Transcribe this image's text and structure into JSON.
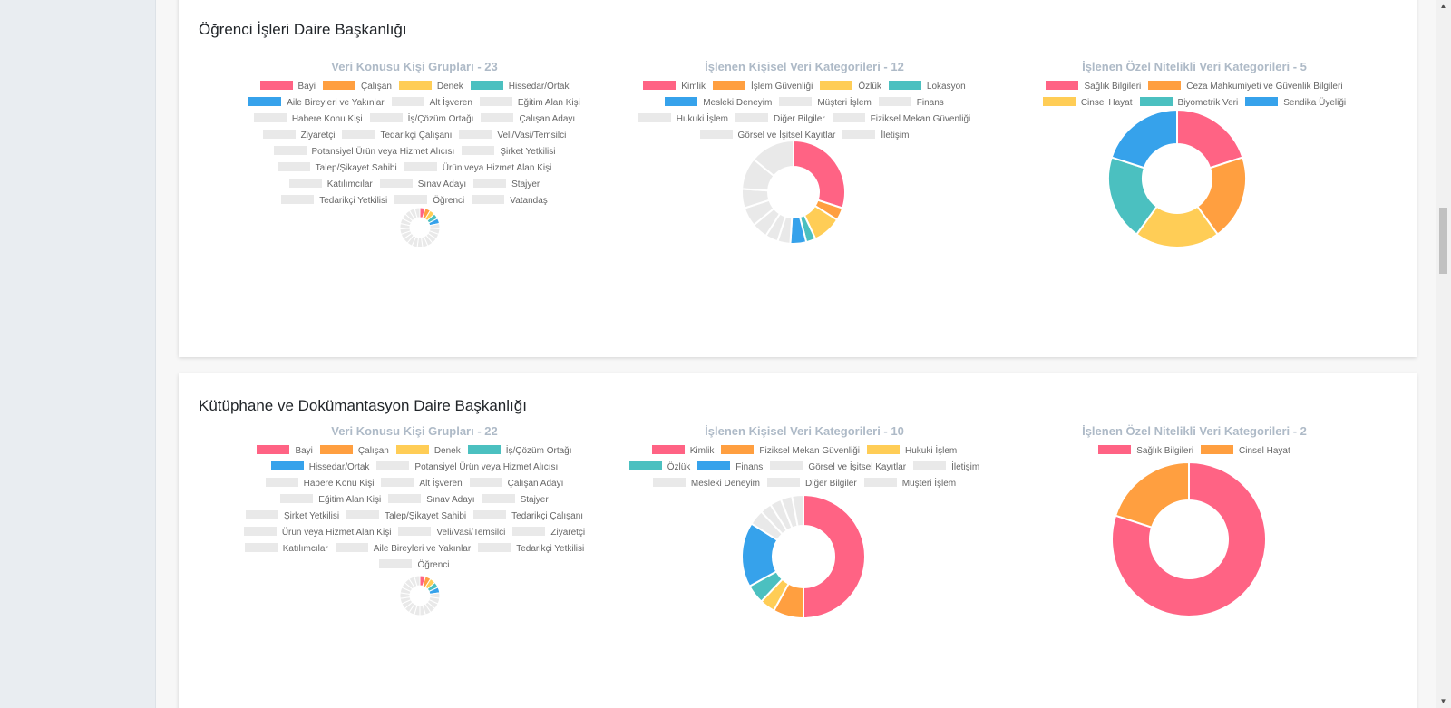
{
  "colors": {
    "red": "#ff6384",
    "orange": "#ff9f40",
    "yellow": "#ffcd56",
    "teal": "#4bc0c0",
    "blue": "#36a2eb",
    "gray": "#e9e9e9",
    "title_gray": "#aebac7"
  },
  "scrollbar": {
    "up_icon": "▲",
    "down_icon": "▼"
  },
  "cards": [
    {
      "title": "Öğrenci İşleri Daire Başkanlığı",
      "charts": [
        {
          "title": "Veri Konusu Kişi Grupları - 23",
          "legend_rows": [
            [
              "Bayi",
              "Çalışan",
              "Denek",
              "Hissedar/Ortak"
            ],
            [
              "Aile Bireyleri ve Yakınlar",
              "Alt İşveren",
              "Eğitim Alan Kişi"
            ],
            [
              "Habere Konu Kişi",
              "İş/Çözüm Ortağı",
              "Çalışan Adayı"
            ],
            [
              "Ziyaretçi",
              "Tedarikçi Çalışanı",
              "Veli/Vasi/Temsilci"
            ],
            [
              "Potansiyel Ürün veya Hizmet Alıcısı",
              "Şirket Yetkilisi"
            ],
            [
              "Talep/Şikayet Sahibi",
              "Ürün veya Hizmet Alan Kişi"
            ],
            [
              "Katılımcılar",
              "Sınav Adayı",
              "Stajyer"
            ],
            [
              "Tedarikçi Yetkilisi",
              "Öğrenci",
              "Vatandaş"
            ]
          ],
          "visible_count": 5
        },
        {
          "title": "İşlenen Kişisel Veri Kategorileri - 12",
          "legend_rows": [
            [
              "Kimlik",
              "İşlem Güvenliği",
              "Özlük",
              "Lokasyon"
            ],
            [
              "Mesleki Deneyim",
              "Müşteri İşlem",
              "Finans"
            ],
            [
              "Hukuki İşlem",
              "Diğer Bilgiler",
              "Fiziksel Mekan Güvenliği"
            ],
            [
              "Görsel ve İşitsel Kayıtlar",
              "İletişim"
            ]
          ],
          "visible_count": 5
        },
        {
          "title": "İşlenen Özel Nitelikli Veri Kategorileri - 5",
          "legend_rows": [
            [
              "Sağlık Bilgileri",
              "Ceza Mahkumiyeti ve Güvenlik Bilgileri"
            ],
            [
              "Cinsel Hayat",
              "Biyometrik Veri",
              "Sendika Üyeliği"
            ]
          ],
          "visible_count": 5
        }
      ]
    },
    {
      "title": "Kütüphane ve Dokümantasyon Daire Başkanlığı",
      "charts": [
        {
          "title": "Veri Konusu Kişi Grupları - 22",
          "legend_rows": [
            [
              "Bayi",
              "Çalışan",
              "Denek",
              "İş/Çözüm Ortağı"
            ],
            [
              "Hissedar/Ortak",
              "Potansiyel Ürün veya Hizmet Alıcısı"
            ],
            [
              "Habere Konu Kişi",
              "Alt İşveren",
              "Çalışan Adayı"
            ],
            [
              "Eğitim Alan Kişi",
              "Sınav Adayı",
              "Stajyer"
            ],
            [
              "Şirket Yetkilisi",
              "Talep/Şikayet Sahibi",
              "Tedarikçi Çalışanı"
            ],
            [
              "Ürün veya Hizmet Alan Kişi",
              "Veli/Vasi/Temsilci",
              "Ziyaretçi"
            ],
            [
              "Katılımcılar",
              "Aile Bireyleri ve Yakınlar",
              "Tedarikçi Yetkilisi"
            ],
            [
              "Öğrenci"
            ]
          ],
          "visible_count": 5
        },
        {
          "title": "İşlenen Kişisel Veri Kategorileri - 10",
          "legend_rows": [
            [
              "Kimlik",
              "Fiziksel Mekan Güvenliği",
              "Hukuki İşlem"
            ],
            [
              "Özlük",
              "Finans",
              "Görsel ve İşitsel Kayıtlar",
              "İletişim"
            ],
            [
              "Mesleki Deneyim",
              "Diğer Bilgiler",
              "Müşteri İşlem"
            ]
          ],
          "visible_count": 5
        },
        {
          "title": "İşlenen Özel Nitelikli Veri Kategorileri - 2",
          "legend_rows": [
            [
              "Sağlık Bilgileri",
              "Cinsel Hayat"
            ]
          ],
          "visible_count": 2
        }
      ]
    }
  ],
  "chart_data": [
    {
      "type": "pie",
      "title": "Veri Konusu Kişi Grupları - 23",
      "categories": [
        "Bayi",
        "Çalışan",
        "Denek",
        "Hissedar/Ortak",
        "Aile Bireyleri ve Yakınlar",
        "Alt İşveren",
        "Eğitim Alan Kişi",
        "Habere Konu Kişi",
        "İş/Çözüm Ortağı",
        "Çalışan Adayı",
        "Ziyaretçi",
        "Tedarikçi Çalışanı",
        "Veli/Vasi/Temsilci",
        "Potansiyel Ürün veya Hizmet Alıcısı",
        "Şirket Yetkilisi",
        "Talep/Şikayet Sahibi",
        "Ürün veya Hizmet Alan Kişi",
        "Katılımcılar",
        "Sınav Adayı",
        "Stajyer",
        "Tedarikçi Yetkilisi",
        "Öğrenci",
        "Vatandaş"
      ],
      "values": [
        1,
        1,
        1,
        1,
        1,
        1,
        1,
        1,
        1,
        1,
        1,
        1,
        1,
        1,
        1,
        1,
        1,
        1,
        1,
        1,
        1,
        1,
        1
      ],
      "donut": true
    },
    {
      "type": "pie",
      "title": "İşlenen Kişisel Veri Kategorileri - 12",
      "categories": [
        "Kimlik",
        "İşlem Güvenliği",
        "Özlük",
        "Lokasyon",
        "Mesleki Deneyim",
        "Müşteri İşlem",
        "Finans",
        "Hukuki İşlem",
        "Diğer Bilgiler",
        "Fiziksel Mekan Güvenliği",
        "Görsel ve İşitsel Kayıtlar",
        "İletişim"
      ],
      "values": [
        30,
        4,
        9,
        3,
        5,
        4,
        4,
        5,
        6,
        6,
        10,
        14
      ],
      "donut": true
    },
    {
      "type": "pie",
      "title": "İşlenen Özel Nitelikli Veri Kategorileri - 5",
      "categories": [
        "Sağlık Bilgileri",
        "Ceza Mahkumiyeti ve Güvenlik Bilgileri",
        "Cinsel Hayat",
        "Biyometrik Veri",
        "Sendika Üyeliği"
      ],
      "values": [
        1,
        1,
        1,
        1,
        1
      ],
      "donut": true
    },
    {
      "type": "pie",
      "title": "Veri Konusu Kişi Grupları - 22",
      "categories": [
        "Bayi",
        "Çalışan",
        "Denek",
        "İş/Çözüm Ortağı",
        "Hissedar/Ortak",
        "Potansiyel Ürün veya Hizmet Alıcısı",
        "Habere Konu Kişi",
        "Alt İşveren",
        "Çalışan Adayı",
        "Eğitim Alan Kişi",
        "Sınav Adayı",
        "Stajyer",
        "Şirket Yetkilisi",
        "Talep/Şikayet Sahibi",
        "Tedarikçi Çalışanı",
        "Ürün veya Hizmet Alan Kişi",
        "Veli/Vasi/Temsilci",
        "Ziyaretçi",
        "Katılımcılar",
        "Aile Bireyleri ve Yakınlar",
        "Tedarikçi Yetkilisi",
        "Öğrenci"
      ],
      "values": [
        1,
        1,
        1,
        1,
        1,
        1,
        1,
        1,
        1,
        1,
        1,
        1,
        1,
        1,
        1,
        1,
        1,
        1,
        1,
        1,
        1,
        1
      ],
      "donut": true
    },
    {
      "type": "pie",
      "title": "İşlenen Kişisel Veri Kategorileri - 10",
      "categories": [
        "Kimlik",
        "Fiziksel Mekan Güvenliği",
        "Hukuki İşlem",
        "Özlük",
        "Finans",
        "Görsel ve İşitsel Kayıtlar",
        "İletişim",
        "Mesleki Deneyim",
        "Diğer Bilgiler",
        "Müşteri İşlem"
      ],
      "values": [
        50,
        8,
        4,
        5,
        17,
        4,
        3,
        3,
        3,
        3
      ],
      "donut": true
    },
    {
      "type": "pie",
      "title": "İşlenen Özel Nitelikli Veri Kategorileri - 2",
      "categories": [
        "Sağlık Bilgileri",
        "Cinsel Hayat"
      ],
      "values": [
        80,
        20
      ],
      "donut": true
    }
  ]
}
